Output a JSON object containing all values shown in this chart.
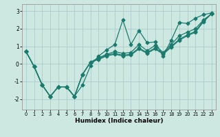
{
  "xlabel": "Humidex (Indice chaleur)",
  "bg_color": "#cce8e0",
  "grid_color": "#aacccc",
  "line_color": "#1a7a6e",
  "xlim": [
    -0.5,
    23.5
  ],
  "ylim": [
    -2.6,
    3.4
  ],
  "yticks": [
    -2,
    -1,
    0,
    1,
    2,
    3
  ],
  "xticks": [
    0,
    1,
    2,
    3,
    4,
    5,
    6,
    7,
    8,
    9,
    10,
    11,
    12,
    13,
    14,
    15,
    16,
    17,
    18,
    19,
    20,
    21,
    22,
    23
  ],
  "line1_x": [
    0,
    1,
    2,
    3,
    4,
    5,
    6,
    7,
    8,
    9,
    10,
    11,
    12,
    13,
    14,
    15,
    16,
    17,
    18,
    19,
    20,
    21,
    22,
    23
  ],
  "line1_y": [
    0.7,
    -0.15,
    -1.2,
    -1.85,
    -1.3,
    -1.3,
    -1.85,
    -1.2,
    -0.1,
    0.45,
    0.8,
    1.1,
    2.5,
    1.1,
    1.9,
    1.2,
    1.25,
    0.45,
    1.35,
    2.35,
    2.3,
    2.6,
    2.8,
    2.9
  ],
  "line2_x": [
    0,
    1,
    2,
    3,
    4,
    5,
    6,
    7,
    8,
    9,
    10,
    11,
    12,
    13,
    14,
    15,
    16,
    17,
    18,
    19,
    20,
    21,
    22,
    23
  ],
  "line2_y": [
    0.7,
    -0.15,
    -1.2,
    -1.85,
    -1.3,
    -1.3,
    -1.85,
    -0.6,
    0.1,
    0.35,
    0.55,
    0.7,
    0.6,
    0.65,
    1.1,
    0.75,
    1.05,
    0.65,
    1.1,
    1.6,
    1.8,
    2.0,
    2.5,
    2.85
  ],
  "line3_x": [
    0,
    1,
    2,
    3,
    4,
    5,
    6,
    7,
    8,
    9,
    10,
    11,
    12,
    13,
    14,
    15,
    16,
    17,
    18,
    19,
    20,
    21,
    22,
    23
  ],
  "line3_y": [
    0.7,
    -0.15,
    -1.2,
    -1.85,
    -1.3,
    -1.3,
    -1.85,
    -0.6,
    0.1,
    0.3,
    0.5,
    0.6,
    0.5,
    0.55,
    0.9,
    0.65,
    0.9,
    0.6,
    1.0,
    1.4,
    1.65,
    1.85,
    2.45,
    2.85
  ],
  "line4_x": [
    0,
    1,
    2,
    3,
    4,
    5,
    6,
    7,
    8,
    9,
    10,
    11,
    12,
    13,
    14,
    15,
    16,
    17,
    18,
    19,
    20,
    21,
    22,
    23
  ],
  "line4_y": [
    0.7,
    -0.15,
    -1.2,
    -1.85,
    -1.3,
    -1.3,
    -1.85,
    -0.6,
    0.1,
    0.25,
    0.45,
    0.55,
    0.45,
    0.5,
    0.85,
    0.6,
    0.85,
    0.55,
    0.95,
    1.35,
    1.6,
    1.8,
    2.4,
    2.85
  ]
}
